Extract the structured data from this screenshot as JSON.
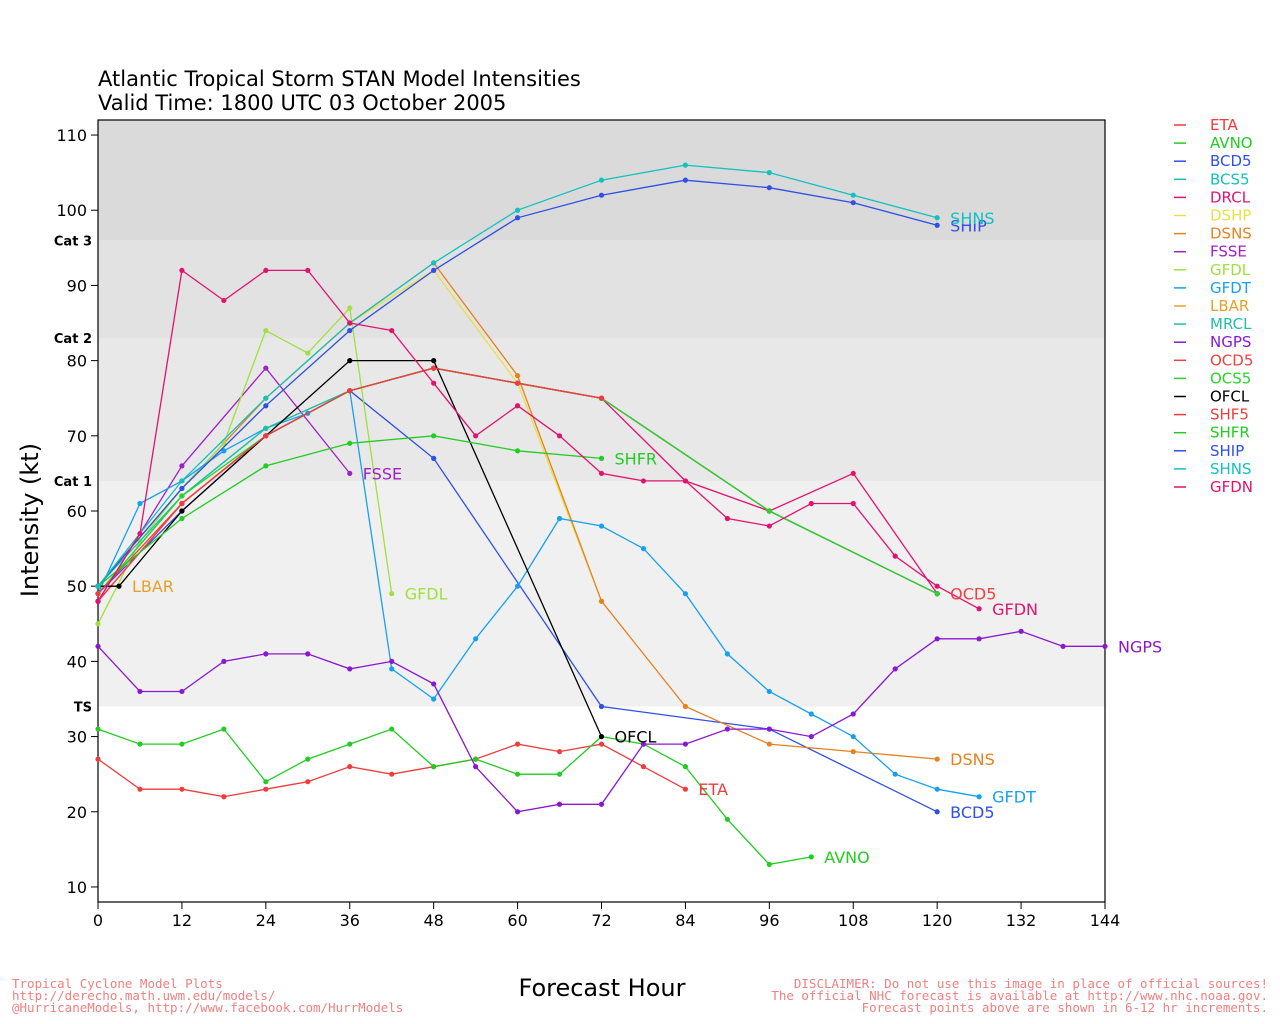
{
  "chart_data": {
    "type": "line",
    "title": "Atlantic Tropical Storm STAN Model Intensities",
    "subtitle": "Valid Time: 1800 UTC 03 October 2005",
    "xlabel": "Forecast Hour",
    "ylabel": "Intensity (kt)",
    "xlim": [
      0,
      144
    ],
    "ylim": [
      8,
      112
    ],
    "x_ticks": [
      "0",
      "12",
      "24",
      "36",
      "48",
      "60",
      "72",
      "84",
      "96",
      "108",
      "120",
      "132",
      "144"
    ],
    "y_ticks": [
      "10",
      "20",
      "30",
      "40",
      "50",
      "60",
      "70",
      "80",
      "90",
      "100",
      "110"
    ],
    "bands": [
      {
        "from": 8,
        "to": 34,
        "color": "#ffffff"
      },
      {
        "from": 34,
        "to": 64,
        "color": "#f0f0f0"
      },
      {
        "from": 64,
        "to": 83,
        "color": "#e8e8e8"
      },
      {
        "from": 83,
        "to": 96,
        "color": "#e2e2e2"
      },
      {
        "from": 96,
        "to": 112,
        "color": "#dadada"
      }
    ],
    "category_labels": [
      {
        "label": "TS",
        "value": 34
      },
      {
        "label": "Cat 1",
        "value": 64
      },
      {
        "label": "Cat 2",
        "value": 83
      },
      {
        "label": "Cat 3",
        "value": 96
      }
    ],
    "legend_position": "right",
    "series": [
      {
        "name": "ETA",
        "color": "#f03c3c",
        "end_label": "ETA",
        "x": [
          0,
          6,
          12,
          18,
          24,
          30,
          36,
          42,
          48,
          54,
          60,
          66,
          72,
          78,
          84
        ],
        "y": [
          27,
          23,
          23,
          22,
          23,
          24,
          26,
          25,
          26,
          27,
          29,
          28,
          29,
          26,
          23
        ]
      },
      {
        "name": "AVNO",
        "color": "#22cc22",
        "end_label": "AVNO",
        "x": [
          0,
          6,
          12,
          18,
          24,
          30,
          36,
          42,
          48,
          54,
          60,
          66,
          72,
          78,
          84,
          90,
          96,
          102
        ],
        "y": [
          31,
          29,
          29,
          31,
          24,
          27,
          29,
          31,
          26,
          27,
          25,
          25,
          30,
          29,
          26,
          19,
          13,
          14
        ]
      },
      {
        "name": "BCD5",
        "color": "#2f4fe6",
        "end_label": "BCD5",
        "x": [
          0,
          12,
          24,
          36,
          48,
          72,
          96,
          120
        ],
        "y": [
          49,
          60,
          70,
          76,
          67,
          34,
          31,
          20
        ]
      },
      {
        "name": "BCS5",
        "color": "#14c0c0",
        "end_label": "",
        "x": [
          0,
          12,
          24,
          36,
          48,
          60,
          72,
          96,
          120
        ],
        "y": [
          49,
          62,
          71,
          76,
          79,
          77,
          75,
          60,
          49
        ]
      },
      {
        "name": "DRCL",
        "color": "#e0146e",
        "end_label": "",
        "x": [
          0,
          12,
          24,
          36,
          48,
          60,
          72,
          84,
          96,
          108,
          120
        ],
        "y": [
          48,
          61,
          70,
          76,
          79,
          77,
          75,
          64,
          60,
          65,
          49
        ]
      },
      {
        "name": "DSHP",
        "color": "#e8e04a",
        "end_label": "",
        "x": [
          0,
          12,
          24,
          36,
          48,
          60,
          72
        ],
        "y": [
          50,
          63,
          75,
          85,
          92,
          77,
          48
        ]
      },
      {
        "name": "DSNS",
        "color": "#e8801e",
        "end_label": "DSNS",
        "x": [
          0,
          12,
          24,
          36,
          48,
          60,
          72,
          84,
          96,
          108,
          120
        ],
        "y": [
          50,
          63,
          75,
          85,
          93,
          78,
          48,
          34,
          29,
          28,
          27
        ]
      },
      {
        "name": "FSSE",
        "color": "#a020c8",
        "end_label": "FSSE",
        "x": [
          0,
          12,
          24,
          36
        ],
        "y": [
          48,
          66,
          79,
          65
        ]
      },
      {
        "name": "GFDL",
        "color": "#a0e040",
        "end_label": "GFDL",
        "x": [
          0,
          6,
          12,
          18,
          24,
          30,
          36,
          42
        ],
        "y": [
          45,
          56,
          63,
          69,
          84,
          81,
          87,
          49
        ]
      },
      {
        "name": "GFDT",
        "color": "#18a0f0",
        "end_label": "GFDT",
        "x": [
          0,
          6,
          12,
          18,
          24,
          30,
          36,
          42,
          48,
          54,
          60,
          66,
          72,
          78,
          84,
          90,
          96,
          102,
          108,
          114,
          120,
          126
        ],
        "y": [
          49,
          61,
          64,
          68,
          71,
          73,
          76,
          39,
          35,
          43,
          50,
          59,
          58,
          55,
          49,
          41,
          36,
          33,
          30,
          25,
          23,
          22
        ]
      },
      {
        "name": "LBAR",
        "color": "#e8a028",
        "end_label": "LBAR",
        "x": [
          0,
          3
        ],
        "y": [
          50,
          50
        ]
      },
      {
        "name": "MRCL",
        "color": "#20c0a0",
        "end_label": "",
        "x": [
          0,
          12,
          24,
          36,
          48,
          60,
          72,
          96,
          120
        ],
        "y": [
          50,
          62,
          71,
          76,
          79,
          77,
          75,
          60,
          49
        ]
      },
      {
        "name": "NGPS",
        "color": "#8a18d0",
        "end_label": "NGPS",
        "x": [
          0,
          6,
          12,
          18,
          24,
          30,
          36,
          42,
          48,
          54,
          60,
          66,
          72,
          78,
          84,
          90,
          96,
          102,
          108,
          114,
          120,
          126,
          132,
          138,
          144
        ],
        "y": [
          42,
          36,
          36,
          40,
          41,
          41,
          39,
          40,
          37,
          26,
          20,
          21,
          21,
          29,
          29,
          31,
          31,
          30,
          33,
          39,
          43,
          43,
          44,
          42,
          42
        ]
      },
      {
        "name": "OCD5",
        "color": "#f04040",
        "end_label": "OCD5",
        "x": [
          0,
          12,
          24,
          36,
          48,
          60,
          72,
          96,
          120
        ],
        "y": [
          48,
          61,
          70,
          76,
          79,
          77,
          75,
          60,
          49
        ]
      },
      {
        "name": "OCS5",
        "color": "#2ad42a",
        "end_label": "",
        "x": [
          0,
          12,
          24,
          36,
          48,
          60,
          72,
          96,
          120
        ],
        "y": [
          49,
          62,
          70,
          76,
          79,
          77,
          75,
          60,
          49
        ]
      },
      {
        "name": "OFCL",
        "color": "#000000",
        "end_label": "OFCL",
        "x": [
          0,
          3,
          12,
          36,
          48,
          72
        ],
        "y": [
          50,
          50,
          60,
          80,
          80,
          30
        ]
      },
      {
        "name": "SHF5",
        "color": "#f03c3c",
        "end_label": "",
        "x": [
          0,
          12,
          24,
          36,
          48,
          60,
          72
        ],
        "y": [
          49,
          61,
          70,
          76,
          79,
          77,
          75
        ]
      },
      {
        "name": "SHFR",
        "color": "#22cc22",
        "end_label": "SHFR",
        "x": [
          0,
          12,
          24,
          36,
          48,
          60,
          72
        ],
        "y": [
          50,
          59,
          66,
          69,
          70,
          68,
          67
        ]
      },
      {
        "name": "SHIP",
        "color": "#2f4fe6",
        "end_label": "SHIP",
        "x": [
          0,
          12,
          24,
          36,
          48,
          60,
          72,
          84,
          96,
          108,
          120
        ],
        "y": [
          50,
          63,
          74,
          84,
          92,
          99,
          102,
          104,
          103,
          101,
          98
        ]
      },
      {
        "name": "SHNS",
        "color": "#14c0c0",
        "end_label": "SHNS",
        "x": [
          0,
          12,
          24,
          36,
          48,
          60,
          72,
          84,
          96,
          108,
          120
        ],
        "y": [
          50,
          64,
          75,
          85,
          93,
          100,
          104,
          106,
          105,
          102,
          99
        ]
      },
      {
        "name": "GFDN",
        "color": "#e0146e",
        "end_label": "GFDN",
        "x": [
          0,
          6,
          12,
          18,
          24,
          30,
          36,
          42,
          48,
          54,
          60,
          66,
          72,
          78,
          84,
          90,
          96,
          102,
          108,
          114,
          120,
          126
        ],
        "y": [
          48,
          57,
          92,
          88,
          92,
          92,
          85,
          84,
          77,
          70,
          74,
          70,
          65,
          64,
          64,
          59,
          58,
          61,
          61,
          54,
          50,
          47
        ]
      }
    ]
  },
  "footer": {
    "left_line1": "Tropical Cyclone Model Plots",
    "left_line2": "http://derecho.math.uwm.edu/models/",
    "left_line3": "@HurricaneModels, http://www.facebook.com/HurrModels",
    "right_line1": "DISCLAIMER: Do not use this image in place of official sources!",
    "right_line2": "The official NHC forecast is available at http://www.nhc.noaa.gov.",
    "right_line3": "Forecast points above are shown in 6-12 hr increments."
  }
}
